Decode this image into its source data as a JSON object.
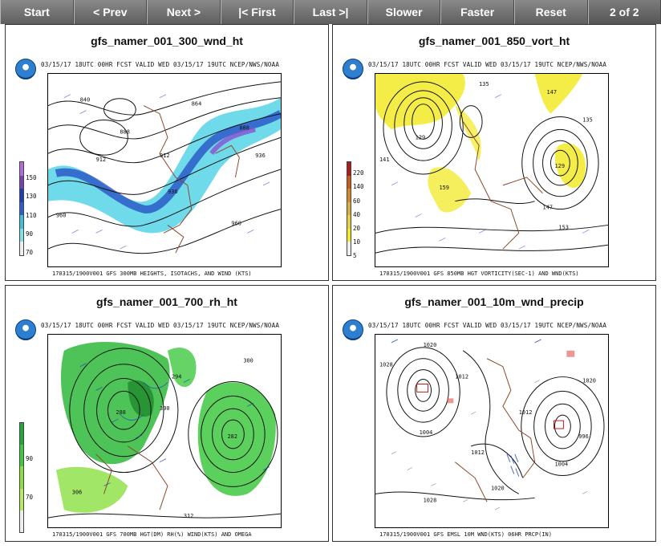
{
  "toolbar": {
    "start": "Start",
    "prev": "< Prev",
    "next": "Next >",
    "first": "|< First",
    "last": "Last >|",
    "slower": "Slower",
    "faster": "Faster",
    "reset": "Reset",
    "counter": "2 of 2"
  },
  "panels": [
    {
      "title": "gfs_namer_001_300_wnd_ht",
      "header": "03/15/17 18UTC  00HR  FCST VALID WED 03/15/17 19UTC    NCEP/NWS/NOAA",
      "footer": "170315/1900V001 GFS 300MB HEIGHTS, ISOTACHS, AND WIND (KTS)",
      "colorbar": [
        "150",
        "130",
        "110",
        "90",
        "70"
      ]
    },
    {
      "title": "gfs_namer_001_850_vort_ht",
      "header": "03/15/17 18UTC  00HR  FCST VALID WED 03/15/17 19UTC    NCEP/NWS/NOAA",
      "footer": "170315/1900V001 GFS 850MB HGT VORTICITY(SEC-1) AND WND(KTS)",
      "colorbar": [
        "220",
        "140",
        "60",
        "40",
        "20",
        "10",
        "5"
      ]
    },
    {
      "title": "gfs_namer_001_700_rh_ht",
      "header": "03/15/17 18UTC  00HR  FCST VALID WED 03/15/17 19UTC    NCEP/NWS/NOAA",
      "footer": "170315/1900V001 GFS 700MB HGT(DM) RH(%) WIND(KTS) AND OMEGA",
      "colorbar": [
        "90",
        "70"
      ]
    },
    {
      "title": "gfs_namer_001_10m_wnd_precip",
      "header": "03/15/17 18UTC  00HR  FCST VALID WED 03/15/17 19UTC    NCEP/NWS/NOAA",
      "footer": "170315/1900V001 GFS EMSL 10M WND(KTS) 06HR PRCP(IN)",
      "colorbar": []
    }
  ],
  "map_labels": {
    "p1": [
      "840",
      "864",
      "888",
      "912",
      "936",
      "960",
      "960",
      "888",
      "912",
      "936"
    ],
    "p2": [
      "129",
      "135",
      "141",
      "147",
      "153",
      "159",
      "147",
      "135",
      "129"
    ],
    "p3": [
      "294",
      "300",
      "306",
      "312",
      "288",
      "282",
      "300"
    ],
    "p4": [
      "1020",
      "1012",
      "1004",
      "1012",
      "1020",
      "1028",
      "1004",
      "996",
      "1020",
      "1012",
      "1028"
    ]
  }
}
